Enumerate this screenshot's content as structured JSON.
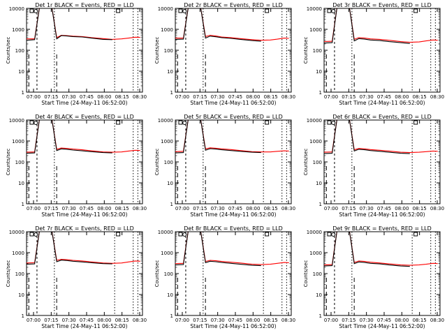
{
  "chart_data": [
    {
      "type": "line",
      "title": "Det 1r BLACK = Events, RED = LLD",
      "xlabel": "Start Time (24-May-11 06:52:00)",
      "ylabel": "Counts/sec",
      "ylog": true,
      "ylim": [
        1,
        10000
      ],
      "xlim": [
        0,
        100
      ],
      "xticks": [
        "07:00",
        "07:15",
        "07:30",
        "07:45",
        "08:00",
        "08:15",
        "08:30"
      ],
      "yticks": [
        "1",
        "10",
        "100",
        "1000",
        "10000"
      ],
      "series": [
        {
          "color": "#ff0000",
          "x": [
            0,
            7,
            11,
            14,
            18,
            22,
            26,
            30,
            35,
            40,
            48,
            56,
            66,
            74,
            82,
            88,
            94,
            98
          ],
          "y": [
            350,
            350,
            10000,
            10000,
            10000,
            10000,
            400,
            520,
            500,
            470,
            450,
            400,
            360,
            330,
            350,
            380,
            420,
            410
          ]
        },
        {
          "color": "#000000",
          "x": [
            0,
            7,
            11,
            14,
            18,
            22,
            26,
            30,
            35,
            40,
            48,
            56,
            66,
            74
          ],
          "y": [
            300,
            320,
            10000,
            10000,
            10000,
            10000,
            350,
            500,
            480,
            450,
            430,
            380,
            330,
            320
          ]
        }
      ]
    },
    {
      "type": "line",
      "title": "Det 2r BLACK = Events, RED = LLD",
      "xlabel": "Start Time (24-May-11 06:52:00)",
      "ylabel": "Counts/sec",
      "ylog": true,
      "ylim": [
        1,
        10000
      ],
      "xlim": [
        0,
        100
      ],
      "xticks": [
        "07:00",
        "07:15",
        "07:30",
        "07:45",
        "08:00",
        "08:15",
        "08:30"
      ],
      "yticks": [
        "1",
        "10",
        "100",
        "1000",
        "10000"
      ],
      "series": [
        {
          "color": "#ff0000",
          "x": [
            0,
            7,
            11,
            14,
            18,
            22,
            26,
            30,
            35,
            40,
            48,
            56,
            66,
            74,
            82,
            88,
            94,
            98
          ],
          "y": [
            380,
            380,
            10000,
            10000,
            10000,
            10000,
            450,
            520,
            480,
            430,
            400,
            360,
            320,
            300,
            310,
            340,
            380,
            370
          ]
        },
        {
          "color": "#000000",
          "x": [
            0,
            7,
            11,
            14,
            18,
            22,
            26,
            30,
            35,
            40,
            48,
            56,
            66,
            74
          ],
          "y": [
            330,
            340,
            10000,
            10000,
            10000,
            10000,
            380,
            470,
            440,
            400,
            370,
            330,
            290,
            270
          ]
        }
      ]
    },
    {
      "type": "line",
      "title": "Det 3r BLACK = Events, RED = LLD",
      "xlabel": "Start Time (24-May-11 06:52:00)",
      "ylabel": "Counts/sec",
      "ylog": true,
      "ylim": [
        1,
        10000
      ],
      "xlim": [
        0,
        100
      ],
      "xticks": [
        "07:00",
        "07:15",
        "07:30",
        "07:45",
        "08:00",
        "08:15",
        "08:30"
      ],
      "yticks": [
        "1",
        "10",
        "100",
        "1000",
        "10000"
      ],
      "series": [
        {
          "color": "#ff0000",
          "x": [
            0,
            7,
            11,
            14,
            18,
            22,
            26,
            30,
            35,
            40,
            48,
            56,
            66,
            74,
            82,
            88,
            94,
            98
          ],
          "y": [
            260,
            270,
            10000,
            10000,
            10000,
            10000,
            330,
            400,
            380,
            350,
            330,
            300,
            260,
            240,
            250,
            280,
            310,
            300
          ]
        },
        {
          "color": "#000000",
          "x": [
            0,
            7,
            11,
            14,
            18,
            22,
            26,
            30,
            35,
            40,
            48,
            56,
            66,
            74
          ],
          "y": [
            220,
            230,
            10000,
            10000,
            10000,
            10000,
            280,
            360,
            340,
            310,
            290,
            260,
            230,
            210
          ]
        }
      ]
    },
    {
      "type": "line",
      "title": "Det 4r BLACK = Events, RED = LLD",
      "xlabel": "Start Time (24-May-11 06:52:00)",
      "ylabel": "Counts/sec",
      "ylog": true,
      "ylim": [
        1,
        10000
      ],
      "xlim": [
        0,
        100
      ],
      "xticks": [
        "07:00",
        "07:15",
        "07:30",
        "07:45",
        "08:00",
        "08:15",
        "08:30"
      ],
      "yticks": [
        "1",
        "10",
        "100",
        "1000",
        "10000"
      ],
      "series": [
        {
          "color": "#ff0000",
          "x": [
            0,
            7,
            11,
            14,
            18,
            22,
            26,
            30,
            35,
            40,
            48,
            56,
            66,
            74,
            82,
            88,
            94,
            98
          ],
          "y": [
            290,
            300,
            10000,
            10000,
            10000,
            10000,
            400,
            460,
            440,
            410,
            380,
            340,
            300,
            290,
            300,
            330,
            360,
            350
          ]
        },
        {
          "color": "#000000",
          "x": [
            0,
            7,
            11,
            14,
            18,
            22,
            26,
            30,
            35,
            40,
            48,
            56,
            66,
            74
          ],
          "y": [
            260,
            270,
            10000,
            10000,
            10000,
            10000,
            350,
            420,
            400,
            370,
            340,
            310,
            280,
            270
          ]
        }
      ]
    },
    {
      "type": "line",
      "title": "Det 5r BLACK = Events, RED = LLD",
      "xlabel": "Start Time (24-May-11 06:52:00)",
      "ylabel": "Counts/sec",
      "ylog": true,
      "ylim": [
        1,
        10000
      ],
      "xlim": [
        0,
        100
      ],
      "xticks": [
        "07:00",
        "07:15",
        "07:30",
        "07:45",
        "08:00",
        "08:15",
        "08:30"
      ],
      "yticks": [
        "1",
        "10",
        "100",
        "1000",
        "10000"
      ],
      "series": [
        {
          "color": "#ff0000",
          "x": [
            0,
            7,
            11,
            14,
            18,
            22,
            26,
            30,
            35,
            40,
            48,
            56,
            66,
            74,
            82,
            88,
            94,
            98
          ],
          "y": [
            310,
            320,
            10000,
            10000,
            10000,
            10000,
            420,
            470,
            450,
            420,
            390,
            350,
            310,
            300,
            300,
            320,
            340,
            330
          ]
        },
        {
          "color": "#000000",
          "x": [
            0,
            7,
            11,
            14,
            18,
            22,
            26,
            30,
            35,
            40,
            48,
            56,
            66,
            74
          ],
          "y": [
            270,
            280,
            10000,
            10000,
            10000,
            10000,
            360,
            430,
            410,
            380,
            350,
            320,
            290,
            280
          ]
        }
      ]
    },
    {
      "type": "line",
      "title": "Det 6r BLACK = Events, RED = LLD",
      "xlabel": "Start Time (24-May-11 06:52:00)",
      "ylabel": "Counts/sec",
      "ylog": true,
      "ylim": [
        1,
        10000
      ],
      "xlim": [
        0,
        100
      ],
      "xticks": [
        "07:00",
        "07:15",
        "07:30",
        "07:45",
        "08:00",
        "08:15",
        "08:30"
      ],
      "yticks": [
        "1",
        "10",
        "100",
        "1000",
        "10000"
      ],
      "series": [
        {
          "color": "#ff0000",
          "x": [
            0,
            7,
            11,
            14,
            18,
            22,
            26,
            30,
            35,
            40,
            48,
            56,
            66,
            74,
            82,
            88,
            94,
            98
          ],
          "y": [
            290,
            300,
            10000,
            10000,
            10000,
            10000,
            380,
            440,
            420,
            390,
            360,
            330,
            290,
            280,
            290,
            310,
            330,
            320
          ]
        },
        {
          "color": "#000000",
          "x": [
            0,
            7,
            11,
            14,
            18,
            22,
            26,
            30,
            35,
            40,
            48,
            56,
            66,
            74
          ],
          "y": [
            250,
            260,
            10000,
            10000,
            10000,
            10000,
            330,
            400,
            380,
            350,
            320,
            290,
            260,
            250
          ]
        }
      ]
    },
    {
      "type": "line",
      "title": "Det 7r BLACK = Events, RED = LLD",
      "xlabel": "Start Time (24-May-11 06:52:00)",
      "ylabel": "Counts/sec",
      "ylog": true,
      "ylim": [
        1,
        10000
      ],
      "xlim": [
        0,
        100
      ],
      "xticks": [
        "07:00",
        "07:15",
        "07:30",
        "07:45",
        "08:00",
        "08:15",
        "08:30"
      ],
      "yticks": [
        "1",
        "10",
        "100",
        "1000",
        "10000"
      ],
      "series": [
        {
          "color": "#ff0000",
          "x": [
            0,
            7,
            11,
            14,
            18,
            22,
            26,
            30,
            35,
            40,
            48,
            56,
            66,
            74,
            82,
            88,
            94,
            98
          ],
          "y": [
            320,
            330,
            10000,
            10000,
            10000,
            10000,
            430,
            480,
            460,
            430,
            400,
            360,
            320,
            310,
            320,
            360,
            400,
            390
          ]
        },
        {
          "color": "#000000",
          "x": [
            0,
            7,
            11,
            14,
            18,
            22,
            26,
            30,
            35,
            40,
            48,
            56,
            66,
            74
          ],
          "y": [
            280,
            290,
            10000,
            10000,
            10000,
            10000,
            370,
            440,
            420,
            390,
            360,
            330,
            300,
            290
          ]
        }
      ]
    },
    {
      "type": "line",
      "title": "Det 8r BLACK = Events, RED = LLD",
      "xlabel": "Start Time (24-May-11 06:52:00)",
      "ylabel": "Counts/sec",
      "ylog": true,
      "ylim": [
        1,
        10000
      ],
      "xlim": [
        0,
        100
      ],
      "xticks": [
        "07:00",
        "07:15",
        "07:30",
        "07:45",
        "08:00",
        "08:15",
        "08:30"
      ],
      "yticks": [
        "1",
        "10",
        "100",
        "1000",
        "10000"
      ],
      "series": [
        {
          "color": "#ff0000",
          "x": [
            0,
            7,
            11,
            14,
            18,
            22,
            26,
            30,
            35,
            40,
            48,
            56,
            66,
            74,
            82,
            88,
            94,
            98
          ],
          "y": [
            300,
            310,
            10000,
            10000,
            10000,
            10000,
            380,
            430,
            410,
            380,
            350,
            320,
            280,
            270,
            280,
            310,
            340,
            330
          ]
        },
        {
          "color": "#000000",
          "x": [
            0,
            7,
            11,
            14,
            18,
            22,
            26,
            30,
            35,
            40,
            48,
            56,
            66,
            74
          ],
          "y": [
            260,
            270,
            10000,
            10000,
            10000,
            10000,
            330,
            390,
            370,
            340,
            310,
            280,
            250,
            240
          ]
        }
      ]
    },
    {
      "type": "line",
      "title": "Det 9r BLACK = Events, RED = LLD",
      "xlabel": "Start Time (24-May-11 06:52:00)",
      "ylabel": "Counts/sec",
      "ylog": true,
      "ylim": [
        1,
        10000
      ],
      "xlim": [
        0,
        100
      ],
      "xticks": [
        "07:00",
        "07:15",
        "07:30",
        "07:45",
        "08:00",
        "08:15",
        "08:30"
      ],
      "yticks": [
        "1",
        "10",
        "100",
        "1000",
        "10000"
      ],
      "series": [
        {
          "color": "#ff0000",
          "x": [
            0,
            7,
            11,
            14,
            18,
            22,
            26,
            30,
            35,
            40,
            48,
            56,
            66,
            74,
            82,
            88,
            94,
            98
          ],
          "y": [
            260,
            270,
            10000,
            10000,
            10000,
            10000,
            340,
            400,
            380,
            350,
            320,
            290,
            260,
            250,
            260,
            280,
            310,
            300
          ]
        },
        {
          "color": "#000000",
          "x": [
            0,
            7,
            11,
            14,
            18,
            22,
            26,
            30,
            35,
            40,
            48,
            56,
            66,
            74
          ],
          "y": [
            230,
            240,
            10000,
            10000,
            10000,
            10000,
            300,
            360,
            340,
            310,
            290,
            260,
            230,
            220
          ]
        }
      ]
    }
  ]
}
